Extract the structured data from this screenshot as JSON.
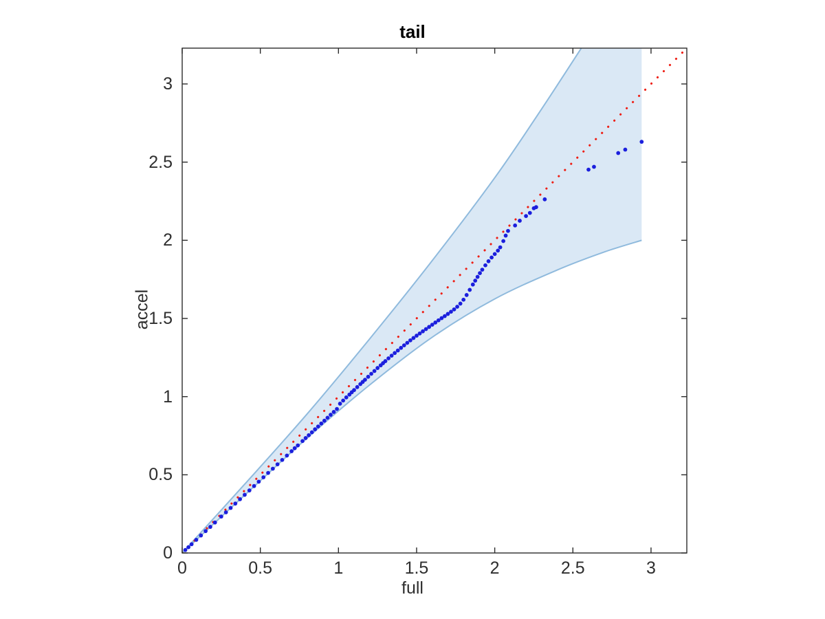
{
  "figure": {
    "title": "tail",
    "xlabel": "full",
    "ylabel": "accel"
  },
  "colors": {
    "background": "#ffffff",
    "axis": "#2b2b2b",
    "tick_text": "#2e2e2e",
    "band_fill": "#dae8f5",
    "band_edge": "#8fbadd",
    "points": "#1b1fdd",
    "identity_line": "#ee1f15"
  },
  "chart_data": {
    "type": "scatter",
    "title": "tail",
    "xlabel": "full",
    "ylabel": "accel",
    "xlim": [
      0,
      3.229
    ],
    "ylim": [
      0,
      3.229
    ],
    "grid": false,
    "xticks": {
      "values": [
        0,
        0.5,
        1,
        1.5,
        2,
        2.5,
        3
      ],
      "labels": [
        "0",
        "0.5",
        "1",
        "1.5",
        "2",
        "2.5",
        "3"
      ]
    },
    "yticks": {
      "values": [
        0,
        0.5,
        1,
        1.5,
        2,
        2.5,
        3
      ],
      "labels": [
        "0",
        "0.5",
        "1",
        "1.5",
        "2",
        "2.5",
        "3"
      ]
    },
    "series": [
      {
        "name": "confidence-band",
        "type": "area",
        "lower": [
          [
            0,
            0
          ],
          [
            0.4,
            0.37
          ],
          [
            0.8,
            0.735
          ],
          [
            1.2,
            1.075
          ],
          [
            1.6,
            1.38
          ],
          [
            2.0,
            1.625
          ],
          [
            2.4,
            1.81
          ],
          [
            2.7,
            1.925
          ],
          [
            2.94,
            2.0
          ]
        ],
        "upper": [
          [
            0,
            0
          ],
          [
            0.4,
            0.44
          ],
          [
            0.8,
            0.89
          ],
          [
            1.2,
            1.37
          ],
          [
            1.6,
            1.87
          ],
          [
            2.0,
            2.4
          ],
          [
            2.3,
            2.84
          ],
          [
            2.6,
            3.3
          ]
        ],
        "right_cut_x": 2.94
      },
      {
        "name": "identity-line",
        "type": "line",
        "style": "dotted",
        "points": [
          [
            0,
            0
          ],
          [
            3.229,
            3.229
          ]
        ]
      },
      {
        "name": "qq-points",
        "type": "scatter",
        "marker": "dot",
        "points": [
          [
            0.02,
            0.019
          ],
          [
            0.04,
            0.037
          ],
          [
            0.06,
            0.056
          ],
          [
            0.09,
            0.084
          ],
          [
            0.12,
            0.112
          ],
          [
            0.15,
            0.14
          ],
          [
            0.18,
            0.167
          ],
          [
            0.21,
            0.195
          ],
          [
            0.25,
            0.233
          ],
          [
            0.28,
            0.26
          ],
          [
            0.31,
            0.288
          ],
          [
            0.34,
            0.316
          ],
          [
            0.37,
            0.344
          ],
          [
            0.4,
            0.372
          ],
          [
            0.43,
            0.4
          ],
          [
            0.46,
            0.428
          ],
          [
            0.49,
            0.456
          ],
          [
            0.52,
            0.484
          ],
          [
            0.55,
            0.512
          ],
          [
            0.58,
            0.539
          ],
          [
            0.61,
            0.567
          ],
          [
            0.64,
            0.595
          ],
          [
            0.67,
            0.623
          ],
          [
            0.7,
            0.651
          ],
          [
            0.72,
            0.67
          ],
          [
            0.74,
            0.688
          ],
          [
            0.77,
            0.716
          ],
          [
            0.79,
            0.735
          ],
          [
            0.81,
            0.753
          ],
          [
            0.83,
            0.772
          ],
          [
            0.85,
            0.791
          ],
          [
            0.87,
            0.809
          ],
          [
            0.89,
            0.828
          ],
          [
            0.91,
            0.846
          ],
          [
            0.93,
            0.865
          ],
          [
            0.95,
            0.884
          ],
          [
            0.97,
            0.902
          ],
          [
            0.99,
            0.921
          ],
          [
            1.01,
            0.955
          ],
          [
            1.03,
            0.975
          ],
          [
            1.05,
            0.995
          ],
          [
            1.07,
            1.013
          ],
          [
            1.085,
            1.028
          ],
          [
            1.1,
            1.042
          ],
          [
            1.12,
            1.061
          ],
          [
            1.14,
            1.08
          ],
          [
            1.155,
            1.094
          ],
          [
            1.17,
            1.108
          ],
          [
            1.19,
            1.127
          ],
          [
            1.21,
            1.146
          ],
          [
            1.23,
            1.164
          ],
          [
            1.25,
            1.183
          ],
          [
            1.27,
            1.2
          ],
          [
            1.285,
            1.214
          ],
          [
            1.3,
            1.227
          ],
          [
            1.32,
            1.245
          ],
          [
            1.34,
            1.262
          ],
          [
            1.36,
            1.279
          ],
          [
            1.38,
            1.295
          ],
          [
            1.4,
            1.312
          ],
          [
            1.42,
            1.328
          ],
          [
            1.44,
            1.344
          ],
          [
            1.46,
            1.36
          ],
          [
            1.48,
            1.375
          ],
          [
            1.5,
            1.39
          ],
          [
            1.52,
            1.404
          ],
          [
            1.54,
            1.418
          ],
          [
            1.56,
            1.432
          ],
          [
            1.58,
            1.446
          ],
          [
            1.6,
            1.46
          ],
          [
            1.62,
            1.474
          ],
          [
            1.64,
            1.488
          ],
          [
            1.66,
            1.502
          ],
          [
            1.68,
            1.515
          ],
          [
            1.7,
            1.529
          ],
          [
            1.72,
            1.543
          ],
          [
            1.74,
            1.558
          ],
          [
            1.76,
            1.575
          ],
          [
            1.78,
            1.595
          ],
          [
            1.8,
            1.62
          ],
          [
            1.82,
            1.65
          ],
          [
            1.84,
            1.683
          ],
          [
            1.86,
            1.717
          ],
          [
            1.875,
            1.742
          ],
          [
            1.89,
            1.766
          ],
          [
            1.905,
            1.79
          ],
          [
            1.92,
            1.812
          ],
          [
            1.94,
            1.84
          ],
          [
            1.96,
            1.866
          ],
          [
            1.98,
            1.89
          ],
          [
            2.0,
            1.912
          ],
          [
            2.02,
            1.934
          ],
          [
            2.035,
            1.955
          ],
          [
            2.055,
            1.995
          ],
          [
            2.07,
            2.03
          ],
          [
            2.085,
            2.06
          ],
          [
            2.13,
            2.095
          ],
          [
            2.16,
            2.125
          ],
          [
            2.2,
            2.155
          ],
          [
            2.225,
            2.175
          ],
          [
            2.25,
            2.205
          ],
          [
            2.265,
            2.212
          ],
          [
            2.32,
            2.262
          ],
          [
            2.6,
            2.452
          ],
          [
            2.635,
            2.47
          ],
          [
            2.79,
            2.558
          ],
          [
            2.835,
            2.58
          ],
          [
            2.94,
            2.63
          ]
        ]
      }
    ]
  }
}
